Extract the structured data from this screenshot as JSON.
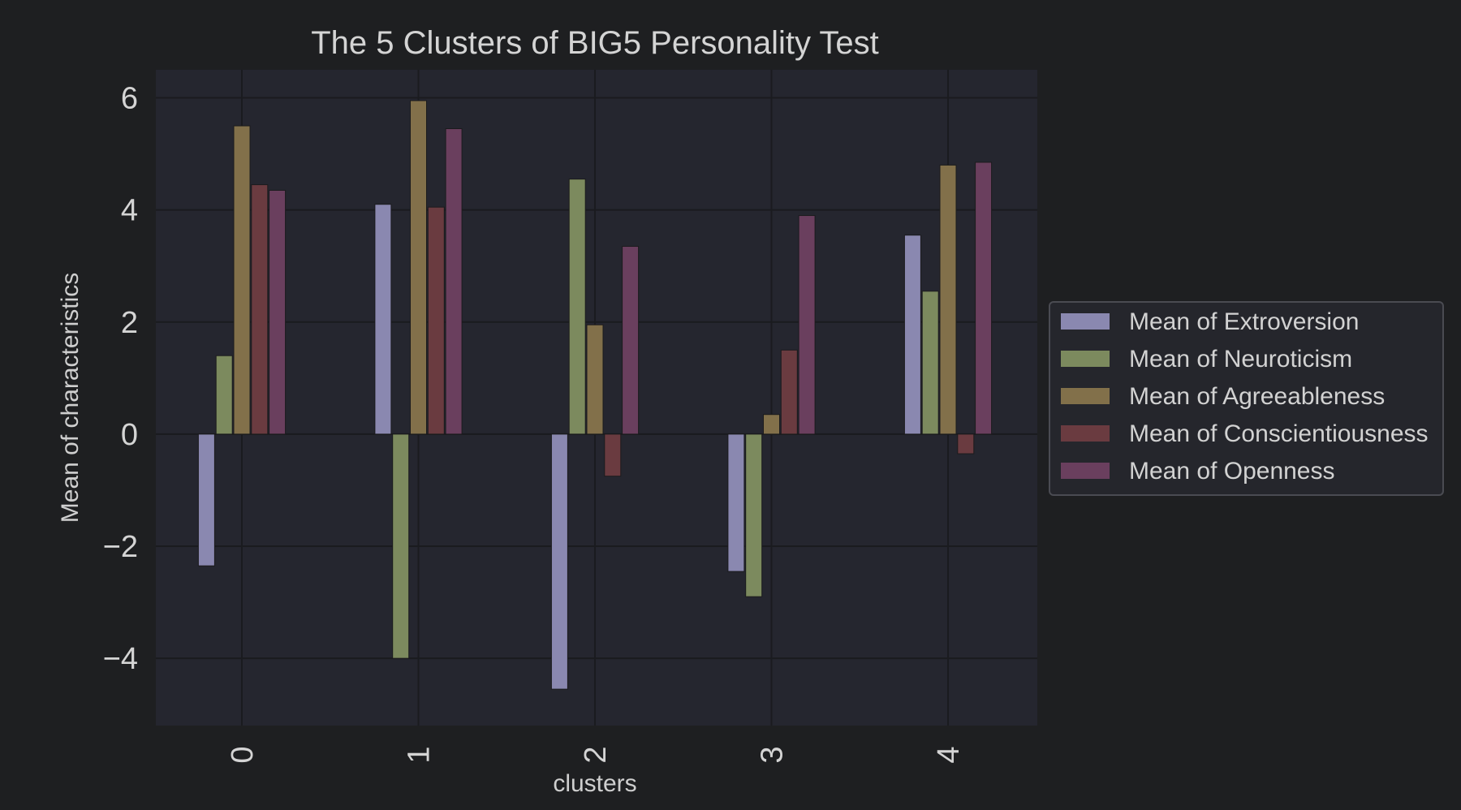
{
  "chart_data": {
    "type": "bar",
    "title": "The 5 Clusters of BIG5 Personality Test",
    "xlabel": "clusters",
    "ylabel": "Mean of characteristics",
    "categories": [
      "0",
      "1",
      "2",
      "3",
      "4"
    ],
    "yticks": [
      6,
      4,
      2,
      0,
      -2,
      -4
    ],
    "ylim": [
      -5.2,
      6.5
    ],
    "grid": true,
    "legend_position": "right",
    "series": [
      {
        "name": "Mean of Extroversion",
        "color": "#8a88b0",
        "values": [
          -2.35,
          4.1,
          -4.55,
          -2.45,
          3.55
        ]
      },
      {
        "name": "Mean of Neuroticism",
        "color": "#7c8a5e",
        "values": [
          1.4,
          -4.0,
          4.55,
          -2.9,
          2.55
        ]
      },
      {
        "name": "Mean of Agreeableness",
        "color": "#82704a",
        "values": [
          5.5,
          5.95,
          1.95,
          0.35,
          4.8
        ]
      },
      {
        "name": "Mean of Conscientiousness",
        "color": "#6a3b40",
        "values": [
          4.45,
          4.05,
          -0.75,
          1.5,
          -0.35
        ]
      },
      {
        "name": "Mean of Openness",
        "color": "#6a3f5e",
        "values": [
          4.35,
          5.45,
          3.35,
          3.9,
          4.85
        ]
      }
    ]
  }
}
